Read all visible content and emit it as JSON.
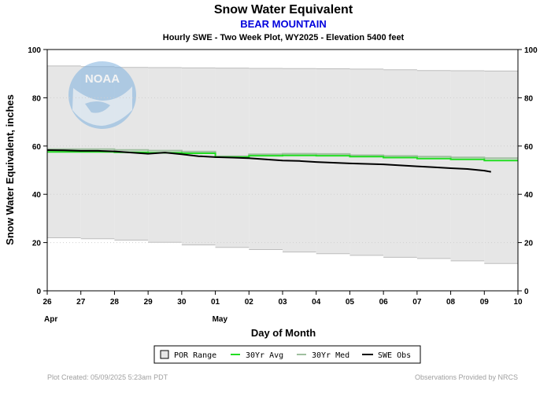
{
  "header": {
    "title": "Snow Water Equivalent",
    "station": "BEAR MOUNTAIN",
    "subtitle": "Hourly SWE - Two Week Plot, WY2025 -  Elevation 5400 feet"
  },
  "footer": {
    "created": "Plot Created: 05/09/2025 5:23am PDT",
    "credit": "Observations Provided by NRCS"
  },
  "logo": {
    "text": "NOAA"
  },
  "colors": {
    "background": "#ffffff",
    "por_band": "#e6e6e6",
    "por_edge": "#bdbdbd",
    "avg": "#22dd22",
    "median": "#9fbf9f",
    "obs": "#000000",
    "logo": "#7fb2e0"
  },
  "chart_data": {
    "type": "line",
    "title": "Snow Water Equivalent",
    "xlabel": "Day of Month",
    "ylabel": "Snow Water Equivalent, inches",
    "x_ticks": [
      "26",
      "27",
      "28",
      "29",
      "30",
      "01",
      "02",
      "03",
      "04",
      "05",
      "06",
      "07",
      "08",
      "09",
      "10"
    ],
    "month_labels": [
      {
        "label": "Apr",
        "at_tick": "26"
      },
      {
        "label": "May",
        "at_tick": "01"
      }
    ],
    "ylim": [
      0,
      100
    ],
    "y_ticks": [
      0,
      20,
      40,
      60,
      80,
      100
    ],
    "legend": {
      "placement": "bottom-center",
      "entries": [
        "POR Range",
        "30Yr Avg",
        "30Yr Med",
        "SWE Obs"
      ]
    },
    "series": [
      {
        "name": "POR Range",
        "kind": "band",
        "step_days": [
          "26",
          "27",
          "28",
          "29",
          "30",
          "01",
          "02",
          "03",
          "04",
          "05",
          "06",
          "07",
          "08",
          "09"
        ],
        "upper": [
          93.2,
          92.9,
          92.6,
          92.5,
          92.4,
          92.3,
          92.2,
          92.1,
          92.0,
          91.9,
          91.6,
          91.3,
          91.2,
          91.1
        ],
        "lower": [
          22.0,
          21.6,
          21.0,
          20.1,
          19.0,
          18.0,
          17.1,
          16.1,
          15.4,
          14.7,
          13.9,
          13.4,
          12.4,
          11.3
        ]
      },
      {
        "name": "30Yr Avg",
        "kind": "step",
        "step_days": [
          "26",
          "27",
          "28",
          "29",
          "30",
          "01",
          "02",
          "03",
          "04",
          "05",
          "06",
          "07",
          "08",
          "09"
        ],
        "values": [
          57.6,
          57.6,
          57.4,
          57.2,
          57.0,
          55.4,
          56.0,
          56.1,
          56.0,
          55.6,
          55.2,
          54.8,
          54.5,
          54.0
        ]
      },
      {
        "name": "30Yr Med",
        "kind": "step",
        "step_days": [
          "26",
          "27",
          "28",
          "29",
          "30",
          "01",
          "02",
          "03",
          "04",
          "05",
          "06",
          "07",
          "08",
          "09"
        ],
        "values": [
          58.7,
          58.7,
          58.4,
          58.1,
          57.7,
          55.8,
          56.6,
          56.8,
          56.7,
          56.2,
          55.9,
          55.6,
          55.3,
          55.0
        ]
      },
      {
        "name": "SWE Obs",
        "kind": "line",
        "days_from_start": [
          0,
          0.5,
          1,
          1.5,
          2,
          2.5,
          3,
          3.5,
          4,
          4.5,
          5,
          5.5,
          6,
          6.5,
          7,
          7.5,
          8,
          8.5,
          9,
          9.5,
          10,
          10.5,
          11,
          11.5,
          12,
          12.5,
          13,
          13.2
        ],
        "values": [
          58.3,
          58.2,
          58.0,
          58.0,
          57.8,
          57.3,
          56.8,
          57.3,
          56.6,
          55.8,
          55.4,
          55.2,
          55.0,
          54.5,
          54.0,
          53.8,
          53.4,
          53.1,
          52.8,
          52.6,
          52.4,
          52.0,
          51.6,
          51.2,
          50.8,
          50.5,
          49.8,
          49.3
        ]
      }
    ]
  }
}
